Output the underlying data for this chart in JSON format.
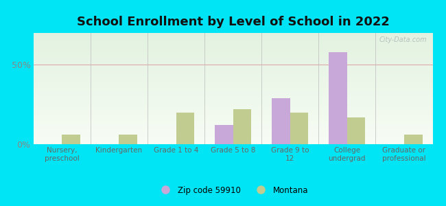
{
  "title": "School Enrollment by Level of School in 2022",
  "categories": [
    "Nursery,\npreschool",
    "Kindergarten",
    "Grade 1 to 4",
    "Grade 5 to 8",
    "Grade 9 to\n12",
    "College\nundergrad",
    "Graduate or\nprofessional"
  ],
  "zip_values": [
    0,
    0,
    0,
    12,
    29,
    58,
    0
  ],
  "montana_values": [
    6,
    6,
    20,
    22,
    20,
    17,
    6
  ],
  "zip_color": "#c8a8d8",
  "montana_color": "#c0cc90",
  "zip_label": "Zip code 59910",
  "montana_label": "Montana",
  "background_color": "#00e5f5",
  "plot_bg_topleft": "#e0f0e0",
  "plot_bg_topright": "#d8ecd8",
  "plot_bg_bottom": "#f4fcf4",
  "ylim": [
    0,
    70
  ],
  "yticks": [
    0,
    50
  ],
  "ytick_labels": [
    "0%",
    "50%"
  ],
  "grid_color": "#ddaaaa",
  "separator_color": "#bbbbbb",
  "watermark": "City-Data.com",
  "title_fontsize": 13,
  "bar_width": 0.32
}
